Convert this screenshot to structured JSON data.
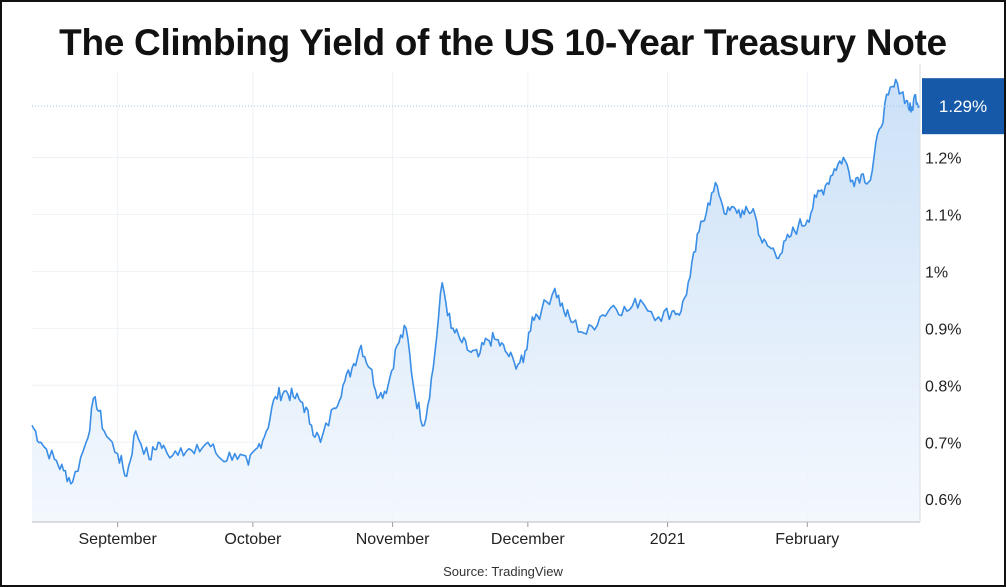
{
  "title": "The Climbing Yield of the US 10-Year Treasury Note",
  "source": "Source: TradingView",
  "colors": {
    "line": "#3a8ee6",
    "fill_top": "#c9dff7",
    "fill_bottom": "#f2f7fd",
    "badge": "#1559a8",
    "grid": "#eef2f6"
  },
  "chart_data": {
    "type": "area",
    "title": "The Climbing Yield of the US 10-Year Treasury Note",
    "xlabel": "",
    "ylabel": "",
    "y_unit": "%",
    "ylim": [
      0.56,
      1.35
    ],
    "yticks": [
      {
        "value": 0.6,
        "label": "0.6%"
      },
      {
        "value": 0.7,
        "label": "0.7%"
      },
      {
        "value": 0.8,
        "label": "0.8%"
      },
      {
        "value": 0.9,
        "label": "0.9%"
      },
      {
        "value": 1.0,
        "label": "1%"
      },
      {
        "value": 1.1,
        "label": "1.1%"
      },
      {
        "value": 1.2,
        "label": "1.2%"
      }
    ],
    "xticks": [
      {
        "date": "2020-09-01",
        "label": "September"
      },
      {
        "date": "2020-10-01",
        "label": "October"
      },
      {
        "date": "2020-11-01",
        "label": "November"
      },
      {
        "date": "2020-12-01",
        "label": "December"
      },
      {
        "date": "2021-01-01",
        "label": "2021"
      },
      {
        "date": "2021-02-01",
        "label": "February"
      }
    ],
    "xlim": [
      "2020-08-13",
      "2021-02-26"
    ],
    "last_value": {
      "value": 1.29,
      "label": "1.29%"
    },
    "grid": true,
    "legend": "none",
    "series": [
      {
        "x": [
          "2020-08-13",
          "2020-08-15",
          "2020-08-18",
          "2020-08-20",
          "2020-08-22",
          "2020-08-25",
          "2020-08-27",
          "2020-08-29",
          "2020-09-01",
          "2020-09-03",
          "2020-09-05",
          "2020-09-08",
          "2020-09-10",
          "2020-09-12",
          "2020-09-15",
          "2020-09-18",
          "2020-09-21",
          "2020-09-24",
          "2020-09-27",
          "2020-09-30",
          "2020-10-02",
          "2020-10-04",
          "2020-10-06",
          "2020-10-08",
          "2020-10-10",
          "2020-10-12",
          "2020-10-14",
          "2020-10-16",
          "2020-10-19",
          "2020-10-21",
          "2020-10-23",
          "2020-10-25",
          "2020-10-27",
          "2020-10-29",
          "2020-10-31",
          "2020-11-02",
          "2020-11-04",
          "2020-11-06",
          "2020-11-08",
          "2020-11-10",
          "2020-11-12",
          "2020-11-14",
          "2020-11-16",
          "2020-11-18",
          "2020-11-20",
          "2020-11-22",
          "2020-11-24",
          "2020-11-26",
          "2020-11-28",
          "2020-11-30",
          "2020-12-02",
          "2020-12-04",
          "2020-12-07",
          "2020-12-09",
          "2020-12-11",
          "2020-12-14",
          "2020-12-17",
          "2020-12-20",
          "2020-12-23",
          "2020-12-26",
          "2020-12-30",
          "2021-01-02",
          "2021-01-04",
          "2021-01-06",
          "2021-01-08",
          "2021-01-10",
          "2021-01-12",
          "2021-01-14",
          "2021-01-16",
          "2021-01-18",
          "2021-01-20",
          "2021-01-22",
          "2021-01-24",
          "2021-01-26",
          "2021-01-28",
          "2021-01-30",
          "2021-02-01",
          "2021-02-03",
          "2021-02-05",
          "2021-02-07",
          "2021-02-09",
          "2021-02-11",
          "2021-02-13",
          "2021-02-15",
          "2021-02-17",
          "2021-02-19",
          "2021-02-21",
          "2021-02-23",
          "2021-02-24",
          "2021-02-25",
          "2021-02-26"
        ],
        "y": [
          0.73,
          0.7,
          0.67,
          0.65,
          0.63,
          0.7,
          0.78,
          0.72,
          0.68,
          0.64,
          0.72,
          0.67,
          0.7,
          0.68,
          0.69,
          0.68,
          0.7,
          0.67,
          0.68,
          0.66,
          0.69,
          0.72,
          0.78,
          0.79,
          0.78,
          0.77,
          0.73,
          0.7,
          0.76,
          0.8,
          0.83,
          0.87,
          0.83,
          0.78,
          0.8,
          0.87,
          0.9,
          0.78,
          0.73,
          0.83,
          0.98,
          0.9,
          0.88,
          0.86,
          0.85,
          0.88,
          0.88,
          0.86,
          0.84,
          0.84,
          0.92,
          0.93,
          0.97,
          0.93,
          0.91,
          0.89,
          0.92,
          0.94,
          0.93,
          0.95,
          0.92,
          0.93,
          0.93,
          0.99,
          1.07,
          1.12,
          1.15,
          1.1,
          1.11,
          1.1,
          1.11,
          1.05,
          1.04,
          1.03,
          1.06,
          1.08,
          1.09,
          1.13,
          1.15,
          1.18,
          1.2,
          1.16,
          1.17,
          1.16,
          1.25,
          1.31,
          1.33,
          1.3,
          1.28,
          1.31,
          1.29
        ]
      }
    ]
  }
}
